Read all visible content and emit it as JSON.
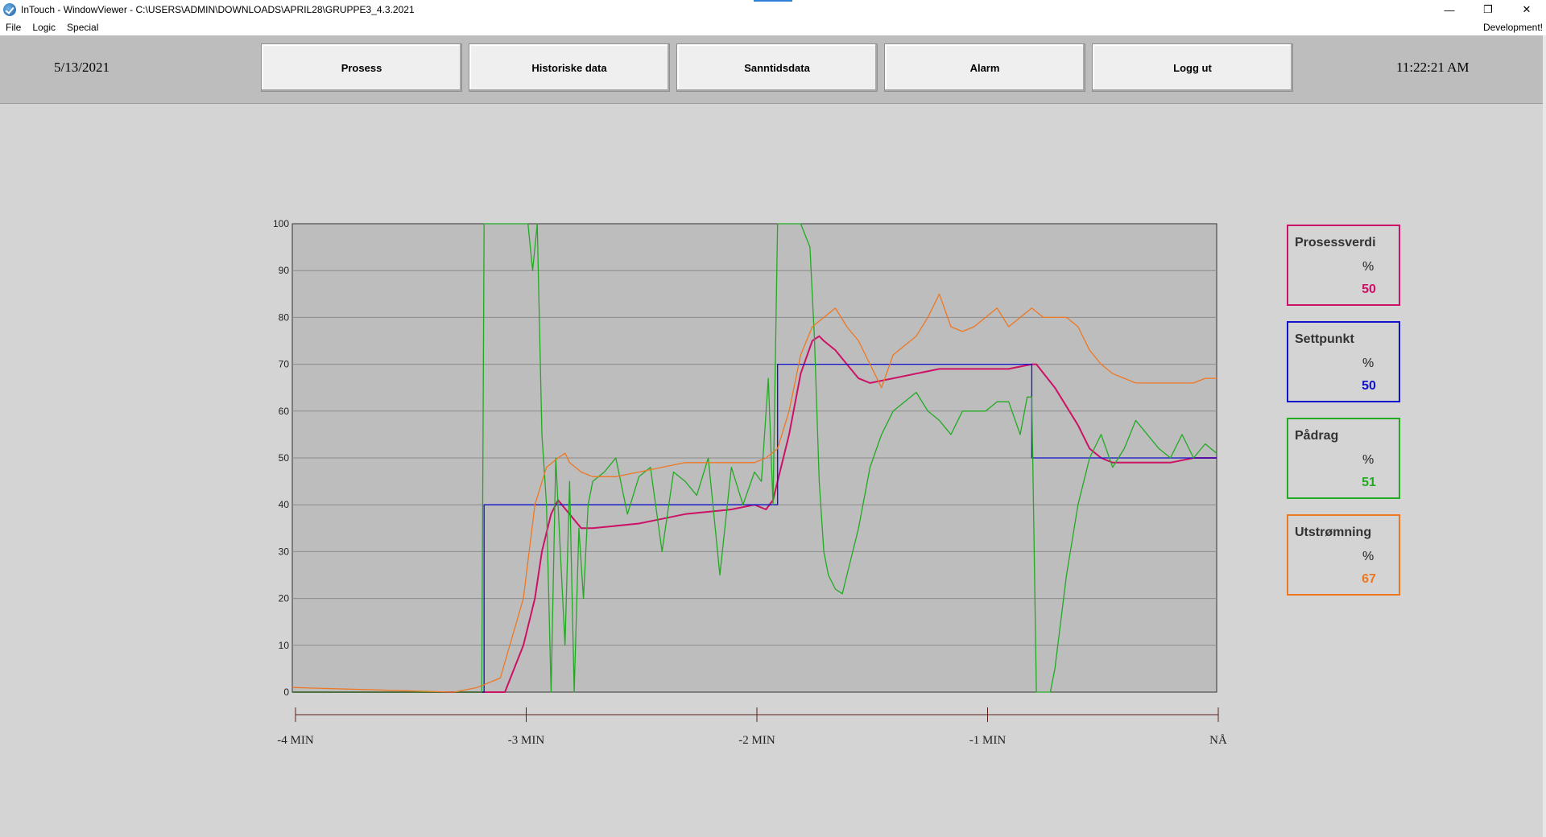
{
  "window": {
    "title": "InTouch - WindowViewer - C:\\USERS\\ADMIN\\DOWNLOADS\\APRIL28\\GRUPPE3_4.3.2021",
    "minimize_glyph": "—",
    "restore_glyph": "❐",
    "close_glyph": "✕"
  },
  "menu": {
    "items": [
      "File",
      "Logic",
      "Special"
    ],
    "mode": "Development!"
  },
  "header": {
    "date": "5/13/2021",
    "time": "11:22:21 AM",
    "buttons": [
      "Prosess",
      "Historiske data",
      "Sanntidsdata",
      "Alarm",
      "Logg ut"
    ]
  },
  "readouts": [
    {
      "name": "Prosessverdi",
      "unit": "%",
      "value": "50",
      "color": "#cc1166"
    },
    {
      "name": "Settpunkt",
      "unit": "%",
      "value": "50",
      "color": "#1111cc"
    },
    {
      "name": "Pådrag",
      "unit": "%",
      "value": "51",
      "color": "#22aa22"
    },
    {
      "name": "Utstrømning",
      "unit": "%",
      "value": "67",
      "color": "#ee7722"
    }
  ],
  "chart_data": {
    "type": "line",
    "ylim": [
      0,
      100
    ],
    "yticks": [
      0,
      10,
      20,
      30,
      40,
      50,
      60,
      70,
      80,
      90,
      100
    ],
    "xlim": [
      -4,
      0
    ],
    "x_unit": "min",
    "xtick_labels": [
      "-4 MIN",
      "-3 MIN",
      "-2 MIN",
      "-1 MIN",
      "NÅ"
    ],
    "xtick_values": [
      -4,
      -3,
      -2,
      -1,
      0
    ],
    "grid": true,
    "plot_background": "#bdbdbd",
    "series": [
      {
        "name": "Prosessverdi",
        "color": "#cc1166",
        "x": [
          -4,
          -3.2,
          -3.08,
          -3.0,
          -2.95,
          -2.92,
          -2.88,
          -2.85,
          -2.8,
          -2.75,
          -2.7,
          -2.5,
          -2.4,
          -2.3,
          -2.1,
          -2.0,
          -1.95,
          -1.92,
          -1.9,
          -1.85,
          -1.8,
          -1.75,
          -1.72,
          -1.7,
          -1.65,
          -1.6,
          -1.55,
          -1.5,
          -1.4,
          -1.3,
          -1.2,
          -1.1,
          -0.9,
          -0.8,
          -0.78,
          -0.7,
          -0.6,
          -0.55,
          -0.5,
          -0.45,
          -0.4,
          -0.3,
          -0.2,
          -0.1,
          0
        ],
        "y": [
          0,
          0,
          0,
          10,
          20,
          30,
          38,
          41,
          38,
          35,
          35,
          36,
          37,
          38,
          39,
          40,
          39,
          41,
          45,
          55,
          68,
          75,
          76,
          75,
          73,
          70,
          67,
          66,
          67,
          68,
          69,
          69,
          69,
          70,
          70,
          65,
          57,
          52,
          50,
          49,
          49,
          49,
          49,
          50,
          50
        ]
      },
      {
        "name": "Settpunkt",
        "color": "#1111cc",
        "x": [
          -4,
          -3.17,
          -3.17,
          -1.9,
          -1.9,
          -0.8,
          -0.8,
          0
        ],
        "y": [
          0,
          0,
          40,
          40,
          70,
          70,
          50,
          50
        ]
      },
      {
        "name": "Pådrag",
        "color": "#22aa22",
        "x": [
          -4,
          -3.18,
          -3.17,
          -2.98,
          -2.96,
          -2.94,
          -2.92,
          -2.9,
          -2.88,
          -2.86,
          -2.84,
          -2.82,
          -2.8,
          -2.78,
          -2.76,
          -2.74,
          -2.72,
          -2.7,
          -2.65,
          -2.6,
          -2.55,
          -2.5,
          -2.45,
          -2.4,
          -2.35,
          -2.3,
          -2.25,
          -2.2,
          -2.15,
          -2.1,
          -2.05,
          -2.0,
          -1.97,
          -1.94,
          -1.92,
          -1.9,
          -1.85,
          -1.8,
          -1.76,
          -1.74,
          -1.72,
          -1.7,
          -1.68,
          -1.65,
          -1.62,
          -1.6,
          -1.55,
          -1.5,
          -1.45,
          -1.4,
          -1.35,
          -1.3,
          -1.25,
          -1.2,
          -1.15,
          -1.1,
          -1.05,
          -1.0,
          -0.95,
          -0.9,
          -0.85,
          -0.82,
          -0.8,
          -0.78,
          -0.72,
          -0.7,
          -0.65,
          -0.6,
          -0.55,
          -0.5,
          -0.45,
          -0.4,
          -0.35,
          -0.3,
          -0.25,
          -0.2,
          -0.15,
          -0.1,
          -0.05,
          0
        ],
        "y": [
          0,
          0,
          100,
          100,
          90,
          100,
          55,
          40,
          0,
          50,
          30,
          10,
          45,
          0,
          35,
          20,
          40,
          45,
          47,
          50,
          38,
          46,
          48,
          30,
          47,
          45,
          42,
          50,
          25,
          48,
          40,
          47,
          45,
          67,
          40,
          100,
          100,
          100,
          95,
          75,
          45,
          30,
          25,
          22,
          21,
          25,
          35,
          48,
          55,
          60,
          62,
          64,
          60,
          58,
          55,
          60,
          60,
          60,
          62,
          62,
          55,
          63,
          63,
          0,
          0,
          5,
          25,
          40,
          50,
          55,
          48,
          52,
          58,
          55,
          52,
          50,
          55,
          50,
          53,
          51
        ]
      },
      {
        "name": "Utstrømning",
        "color": "#ee7722",
        "x": [
          -4,
          -3.3,
          -3.2,
          -3.1,
          -3.0,
          -2.95,
          -2.9,
          -2.85,
          -2.82,
          -2.8,
          -2.75,
          -2.7,
          -2.6,
          -2.5,
          -2.4,
          -2.3,
          -2.2,
          -2.1,
          -2.0,
          -1.95,
          -1.9,
          -1.85,
          -1.8,
          -1.75,
          -1.7,
          -1.65,
          -1.6,
          -1.55,
          -1.5,
          -1.45,
          -1.4,
          -1.35,
          -1.3,
          -1.25,
          -1.2,
          -1.15,
          -1.1,
          -1.05,
          -1.0,
          -0.95,
          -0.9,
          -0.85,
          -0.8,
          -0.75,
          -0.7,
          -0.65,
          -0.6,
          -0.55,
          -0.5,
          -0.45,
          -0.4,
          -0.35,
          -0.3,
          -0.2,
          -0.1,
          -0.05,
          0
        ],
        "y": [
          1,
          0,
          1,
          3,
          20,
          40,
          48,
          50,
          51,
          49,
          47,
          46,
          46,
          47,
          48,
          49,
          49,
          49,
          49,
          50,
          52,
          60,
          72,
          78,
          80,
          82,
          78,
          75,
          70,
          65,
          72,
          74,
          76,
          80,
          85,
          78,
          77,
          78,
          80,
          82,
          78,
          80,
          82,
          80,
          80,
          80,
          78,
          73,
          70,
          68,
          67,
          66,
          66,
          66,
          66,
          67,
          67
        ]
      }
    ]
  }
}
